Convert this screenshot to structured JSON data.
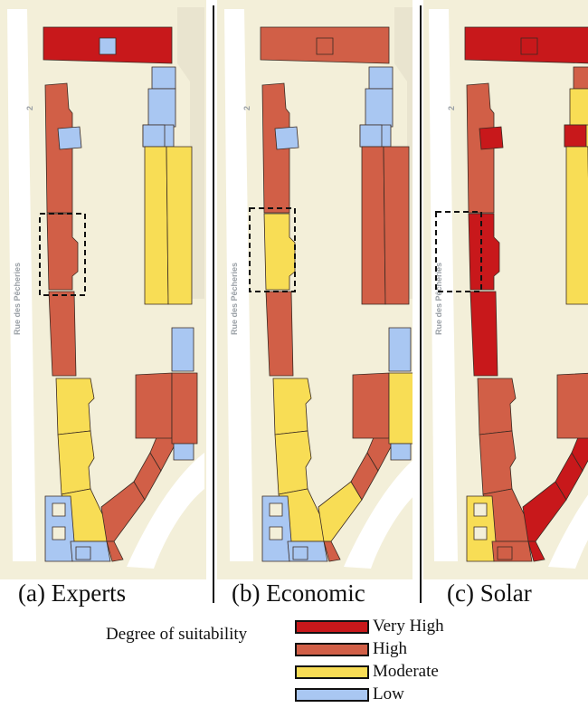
{
  "colors": {
    "very_high": "#c8181b",
    "high": "#d15f47",
    "moderate": "#f8dd55",
    "low": "#a9c7f2",
    "background": "#f3efd9",
    "street": "#ffffff"
  },
  "map": {
    "street_name": "Rue des Pêcheries",
    "street_number": "2"
  },
  "panels": [
    {
      "caption": "(a) Experts",
      "buildings": {
        "north_block": "very_high",
        "north_courtyard": "low",
        "east_stair_top": "low",
        "east_stair_2": "low",
        "east_stair_3": "low",
        "west_row_upper": "high",
        "west_row_mid": "high",
        "west_row_lower": "high",
        "west_annex": "low",
        "east_annex": "low",
        "east_long_a": "moderate",
        "east_long_b": "moderate",
        "east_small": "low",
        "west_s1": "moderate",
        "west_s2": "moderate",
        "west_s3": "moderate",
        "sw_corner": "low",
        "sw_window_1": "background",
        "sw_window_2": "background",
        "corner_bottom": "low",
        "corner_square": "low",
        "curve_a": "high",
        "curve_b": "high",
        "curve_c": "high",
        "curve_d": "high",
        "se_block_a": "high",
        "se_block_b": "high",
        "se_small": "low"
      }
    },
    {
      "caption": "(b) Economic",
      "buildings": {
        "north_block": "high",
        "north_courtyard": "high",
        "east_stair_top": "low",
        "east_stair_2": "low",
        "east_stair_3": "low",
        "west_row_upper": "high",
        "west_row_mid": "moderate",
        "west_row_lower": "high",
        "west_annex": "low",
        "east_annex": "low",
        "east_long_a": "high",
        "east_long_b": "high",
        "east_small": "low",
        "west_s1": "moderate",
        "west_s2": "moderate",
        "west_s3": "moderate",
        "sw_corner": "low",
        "sw_window_1": "background",
        "sw_window_2": "background",
        "corner_bottom": "low",
        "corner_square": "low",
        "curve_a": "moderate",
        "curve_b": "high",
        "curve_c": "high",
        "curve_d": "high",
        "se_block_a": "high",
        "se_block_b": "moderate",
        "se_small": "low"
      }
    },
    {
      "caption": "(c) Solar",
      "buildings": {
        "north_block": "very_high",
        "north_courtyard": "very_high",
        "east_stair_top": "high",
        "east_stair_2": "moderate",
        "east_stair_3": "moderate",
        "west_row_upper": "high",
        "west_row_mid": "very_high",
        "west_row_lower": "very_high",
        "west_annex": "very_high",
        "east_annex": "very_high",
        "east_long_a": "moderate",
        "east_long_b": "moderate",
        "east_small": "low",
        "west_s1": "high",
        "west_s2": "high",
        "west_s3": "high",
        "sw_corner": "moderate",
        "sw_window_1": "background",
        "sw_window_2": "background",
        "corner_bottom": "high",
        "corner_square": "high",
        "curve_a": "very_high",
        "curve_b": "very_high",
        "curve_c": "very_high",
        "curve_d": "very_high",
        "se_block_a": "high",
        "se_block_b": "moderate",
        "se_small": "low"
      }
    }
  ],
  "legend": {
    "title": "Degree of suitability",
    "items": [
      {
        "label": "Very High",
        "color": "#c8181b"
      },
      {
        "label": "High",
        "color": "#d15f47"
      },
      {
        "label": "Moderate",
        "color": "#f8dd55"
      },
      {
        "label": "Low",
        "color": "#a9c7f2"
      }
    ]
  }
}
